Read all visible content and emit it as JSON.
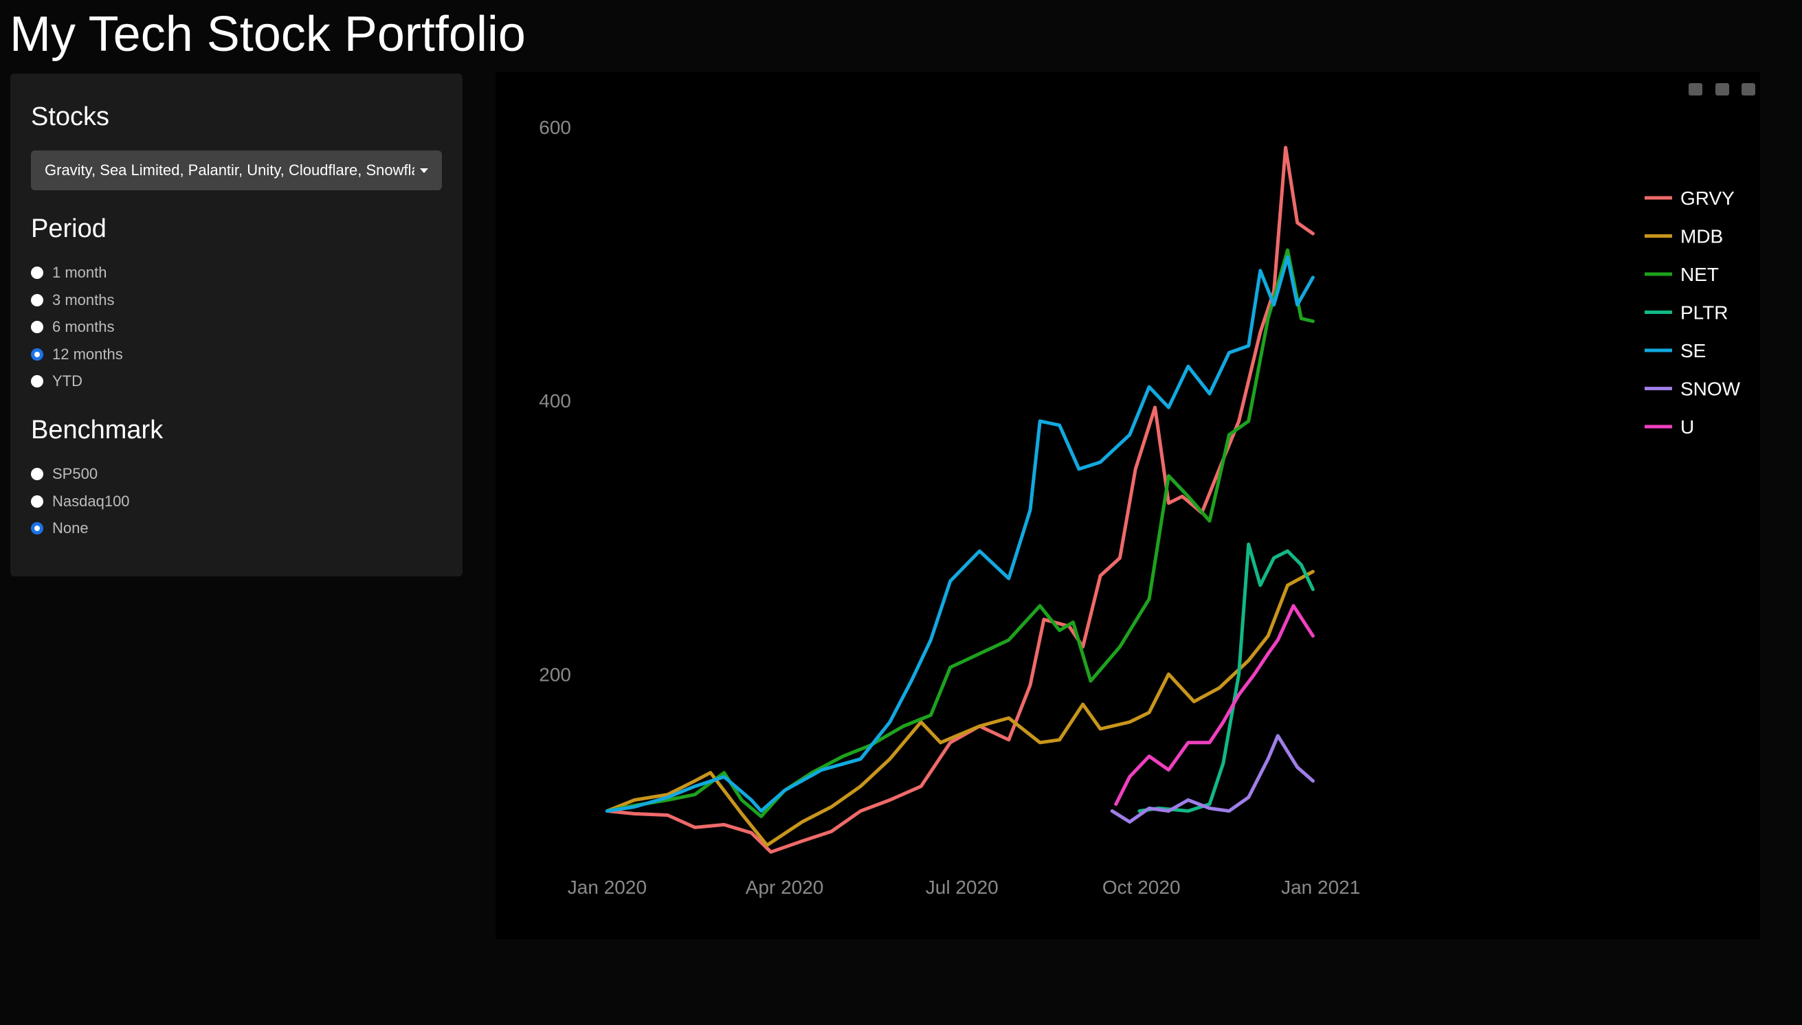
{
  "page": {
    "title": "My Tech Stock Portfolio"
  },
  "sidebar": {
    "stocks": {
      "title": "Stocks",
      "selected": "Gravity, Sea Limited, Palantir, Unity, Cloudflare, Snowflake"
    },
    "period": {
      "title": "Period",
      "options": [
        "1 month",
        "3 months",
        "6 months",
        "12 months",
        "YTD"
      ],
      "selected": "12 months"
    },
    "benchmark": {
      "title": "Benchmark",
      "options": [
        "SP500",
        "Nasdaq100",
        "None"
      ],
      "selected": "None"
    }
  },
  "modebar": {
    "icons": [
      "camera-icon",
      "zoom-icon",
      "pan-icon",
      "zoom-in-icon",
      "zoom-out-icon",
      "autoscale-icon",
      "home-icon",
      "spike-lines-icon",
      "hover-closest-icon",
      "hover-compare-icon",
      "plotly-logo-icon"
    ]
  },
  "chart_data": {
    "type": "line",
    "title": "",
    "xlabel": "",
    "ylabel": "",
    "x_ticks": [
      "Jan 2020",
      "Apr 2020",
      "Jul 2020",
      "Oct 2020",
      "Jan 2021"
    ],
    "y_ticks": [
      200,
      400,
      600
    ],
    "ylim": [
      45,
      620
    ],
    "xlim": [
      "2019-12-10",
      "2021-02-05"
    ],
    "grid": false,
    "legend_position": "top-right",
    "series": [
      {
        "name": "GRVY",
        "color": "#ef6a6a",
        "points": [
          [
            "2020-01-01",
            100
          ],
          [
            "2020-01-15",
            98
          ],
          [
            "2020-02-01",
            97
          ],
          [
            "2020-02-15",
            88
          ],
          [
            "2020-03-01",
            90
          ],
          [
            "2020-03-15",
            84
          ],
          [
            "2020-03-25",
            70
          ],
          [
            "2020-04-10",
            78
          ],
          [
            "2020-04-25",
            85
          ],
          [
            "2020-05-10",
            100
          ],
          [
            "2020-05-25",
            108
          ],
          [
            "2020-06-10",
            118
          ],
          [
            "2020-06-25",
            150
          ],
          [
            "2020-07-10",
            162
          ],
          [
            "2020-07-25",
            152
          ],
          [
            "2020-08-05",
            192
          ],
          [
            "2020-08-12",
            240
          ],
          [
            "2020-08-25",
            235
          ],
          [
            "2020-09-01",
            220
          ],
          [
            "2020-09-10",
            272
          ],
          [
            "2020-09-20",
            285
          ],
          [
            "2020-09-28",
            350
          ],
          [
            "2020-10-08",
            395
          ],
          [
            "2020-10-15",
            325
          ],
          [
            "2020-10-22",
            330
          ],
          [
            "2020-11-01",
            318
          ],
          [
            "2020-11-10",
            350
          ],
          [
            "2020-11-20",
            385
          ],
          [
            "2020-12-01",
            450
          ],
          [
            "2020-12-08",
            480
          ],
          [
            "2020-12-14",
            585
          ],
          [
            "2020-12-20",
            530
          ],
          [
            "2020-12-28",
            522
          ]
        ]
      },
      {
        "name": "MDB",
        "color": "#c8961c",
        "points": [
          [
            "2020-01-01",
            100
          ],
          [
            "2020-01-15",
            108
          ],
          [
            "2020-02-01",
            112
          ],
          [
            "2020-02-15",
            122
          ],
          [
            "2020-02-23",
            128
          ],
          [
            "2020-03-10",
            98
          ],
          [
            "2020-03-23",
            75
          ],
          [
            "2020-04-10",
            92
          ],
          [
            "2020-04-25",
            103
          ],
          [
            "2020-05-10",
            118
          ],
          [
            "2020-05-25",
            138
          ],
          [
            "2020-06-10",
            165
          ],
          [
            "2020-06-20",
            150
          ],
          [
            "2020-07-10",
            162
          ],
          [
            "2020-07-25",
            168
          ],
          [
            "2020-08-10",
            150
          ],
          [
            "2020-08-20",
            152
          ],
          [
            "2020-09-01",
            178
          ],
          [
            "2020-09-10",
            160
          ],
          [
            "2020-09-25",
            165
          ],
          [
            "2020-10-05",
            172
          ],
          [
            "2020-10-15",
            200
          ],
          [
            "2020-10-28",
            180
          ],
          [
            "2020-11-10",
            190
          ],
          [
            "2020-11-25",
            210
          ],
          [
            "2020-12-05",
            228
          ],
          [
            "2020-12-15",
            265
          ],
          [
            "2020-12-28",
            275
          ]
        ]
      },
      {
        "name": "NET",
        "color": "#1ea21e",
        "points": [
          [
            "2020-01-01",
            100
          ],
          [
            "2020-01-15",
            104
          ],
          [
            "2020-02-01",
            108
          ],
          [
            "2020-02-15",
            112
          ],
          [
            "2020-03-01",
            128
          ],
          [
            "2020-03-10",
            108
          ],
          [
            "2020-03-20",
            96
          ],
          [
            "2020-04-01",
            115
          ],
          [
            "2020-04-15",
            128
          ],
          [
            "2020-05-01",
            140
          ],
          [
            "2020-05-15",
            148
          ],
          [
            "2020-06-01",
            162
          ],
          [
            "2020-06-15",
            170
          ],
          [
            "2020-06-25",
            205
          ],
          [
            "2020-07-10",
            215
          ],
          [
            "2020-07-25",
            225
          ],
          [
            "2020-08-10",
            250
          ],
          [
            "2020-08-20",
            232
          ],
          [
            "2020-08-27",
            238
          ],
          [
            "2020-09-05",
            195
          ],
          [
            "2020-09-20",
            220
          ],
          [
            "2020-10-05",
            255
          ],
          [
            "2020-10-15",
            345
          ],
          [
            "2020-10-25",
            330
          ],
          [
            "2020-11-05",
            312
          ],
          [
            "2020-11-15",
            375
          ],
          [
            "2020-11-25",
            385
          ],
          [
            "2020-12-05",
            460
          ],
          [
            "2020-12-15",
            510
          ],
          [
            "2020-12-22",
            460
          ],
          [
            "2020-12-28",
            458
          ]
        ]
      },
      {
        "name": "PLTR",
        "color": "#12b886",
        "points": [
          [
            "2020-09-30",
            100
          ],
          [
            "2020-10-10",
            102
          ],
          [
            "2020-10-25",
            100
          ],
          [
            "2020-11-05",
            105
          ],
          [
            "2020-11-12",
            135
          ],
          [
            "2020-11-20",
            200
          ],
          [
            "2020-11-25",
            295
          ],
          [
            "2020-12-01",
            265
          ],
          [
            "2020-12-08",
            285
          ],
          [
            "2020-12-15",
            290
          ],
          [
            "2020-12-22",
            280
          ],
          [
            "2020-12-28",
            262
          ]
        ]
      },
      {
        "name": "SE",
        "color": "#12a9e0",
        "points": [
          [
            "2020-01-01",
            100
          ],
          [
            "2020-01-15",
            103
          ],
          [
            "2020-02-01",
            110
          ],
          [
            "2020-02-15",
            118
          ],
          [
            "2020-03-01",
            125
          ],
          [
            "2020-03-15",
            108
          ],
          [
            "2020-03-20",
            100
          ],
          [
            "2020-04-01",
            115
          ],
          [
            "2020-04-20",
            130
          ],
          [
            "2020-05-10",
            138
          ],
          [
            "2020-05-25",
            165
          ],
          [
            "2020-06-05",
            195
          ],
          [
            "2020-06-15",
            225
          ],
          [
            "2020-06-25",
            268
          ],
          [
            "2020-07-10",
            290
          ],
          [
            "2020-07-25",
            270
          ],
          [
            "2020-08-05",
            320
          ],
          [
            "2020-08-10",
            385
          ],
          [
            "2020-08-20",
            382
          ],
          [
            "2020-08-30",
            350
          ],
          [
            "2020-09-10",
            355
          ],
          [
            "2020-09-25",
            375
          ],
          [
            "2020-10-05",
            410
          ],
          [
            "2020-10-15",
            395
          ],
          [
            "2020-10-25",
            425
          ],
          [
            "2020-11-05",
            405
          ],
          [
            "2020-11-15",
            435
          ],
          [
            "2020-11-25",
            440
          ],
          [
            "2020-12-01",
            495
          ],
          [
            "2020-12-08",
            470
          ],
          [
            "2020-12-15",
            505
          ],
          [
            "2020-12-20",
            470
          ],
          [
            "2020-12-28",
            490
          ]
        ]
      },
      {
        "name": "SNOW",
        "color": "#9f7ee8",
        "points": [
          [
            "2020-09-16",
            100
          ],
          [
            "2020-09-25",
            92
          ],
          [
            "2020-10-05",
            102
          ],
          [
            "2020-10-15",
            100
          ],
          [
            "2020-10-25",
            108
          ],
          [
            "2020-11-05",
            102
          ],
          [
            "2020-11-15",
            100
          ],
          [
            "2020-11-25",
            110
          ],
          [
            "2020-12-05",
            138
          ],
          [
            "2020-12-10",
            155
          ],
          [
            "2020-12-20",
            132
          ],
          [
            "2020-12-28",
            122
          ]
        ]
      },
      {
        "name": "U",
        "color": "#f040c0",
        "points": [
          [
            "2020-09-18",
            105
          ],
          [
            "2020-09-25",
            125
          ],
          [
            "2020-10-05",
            140
          ],
          [
            "2020-10-15",
            130
          ],
          [
            "2020-10-25",
            150
          ],
          [
            "2020-11-05",
            150
          ],
          [
            "2020-11-12",
            165
          ],
          [
            "2020-11-20",
            185
          ],
          [
            "2020-11-28",
            200
          ],
          [
            "2020-12-05",
            215
          ],
          [
            "2020-12-10",
            225
          ],
          [
            "2020-12-18",
            250
          ],
          [
            "2020-12-28",
            228
          ]
        ]
      }
    ]
  }
}
